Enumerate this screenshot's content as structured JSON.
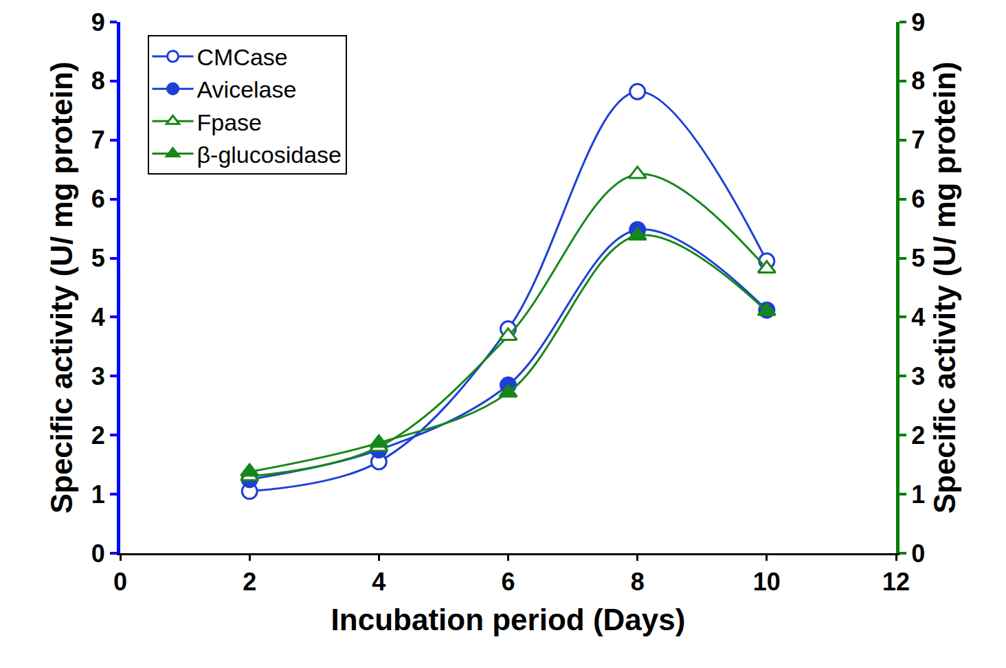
{
  "chart_data": {
    "type": "line",
    "x_label": "Incubation period (Days)",
    "y_label": "Specific activity (U/ mg protein)",
    "y2_label": "Specific activity (U/ mg protein)",
    "x": [
      2,
      4,
      6,
      8,
      10
    ],
    "series": [
      {
        "name": "CMCase",
        "color": "#1f3fd6",
        "marker": "circle-open",
        "line_style": "smooth",
        "values": [
          1.05,
          1.55,
          3.8,
          7.82,
          4.95
        ]
      },
      {
        "name": "Avicelase",
        "color": "#1f3fd6",
        "marker": "circle",
        "line_style": "smooth",
        "values": [
          1.25,
          1.75,
          2.85,
          5.48,
          4.12
        ]
      },
      {
        "name": "Fpase",
        "color": "#16871a",
        "marker": "triangle-up-open",
        "line_style": "smooth",
        "axis": "y2",
        "values": [
          1.3,
          1.8,
          3.68,
          6.42,
          4.82
        ]
      },
      {
        "name": "β-glucosidase",
        "color": "#16871a",
        "marker": "triangle-up",
        "line_style": "smooth",
        "axis": "y2",
        "values": [
          1.38,
          1.87,
          2.72,
          5.38,
          4.1
        ]
      }
    ],
    "xlim": [
      0,
      12
    ],
    "xticks": [
      0,
      2,
      4,
      6,
      8,
      10,
      12
    ],
    "ylim": [
      0,
      9
    ],
    "yticks": [
      0,
      1,
      2,
      3,
      4,
      5,
      6,
      7,
      8,
      9
    ],
    "y2lim": [
      0,
      9
    ],
    "y2ticks": [
      0,
      1,
      2,
      3,
      4,
      5,
      6,
      7,
      8,
      9
    ],
    "y_color": "#0000ff",
    "y2_color": "#008000",
    "grid": false,
    "legend": "upper left"
  }
}
